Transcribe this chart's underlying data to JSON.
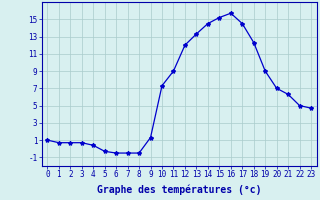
{
  "x": [
    0,
    1,
    2,
    3,
    4,
    5,
    6,
    7,
    8,
    9,
    10,
    11,
    12,
    13,
    14,
    15,
    16,
    17,
    18,
    19,
    20,
    21,
    22,
    23
  ],
  "y": [
    1,
    0.7,
    0.7,
    0.7,
    0.4,
    -0.3,
    -0.5,
    -0.5,
    -0.5,
    1.3,
    7.3,
    9.0,
    12.0,
    13.3,
    14.5,
    15.2,
    15.7,
    14.5,
    12.3,
    9.0,
    7.0,
    6.3,
    5.0,
    4.7
  ],
  "line_color": "#0000cc",
  "marker": "*",
  "marker_size": 3,
  "background_color": "#d8f0f0",
  "grid_color": "#aacccc",
  "xlabel": "Graphe des températures (°c)",
  "xlabel_fontsize": 7,
  "ylabel_ticks": [
    -1,
    1,
    3,
    5,
    7,
    9,
    11,
    13,
    15
  ],
  "xtick_labels": [
    "0",
    "1",
    "2",
    "3",
    "4",
    "5",
    "6",
    "7",
    "8",
    "9",
    "10",
    "11",
    "12",
    "13",
    "14",
    "15",
    "16",
    "17",
    "18",
    "19",
    "20",
    "21",
    "22",
    "23"
  ],
  "ylim": [
    -2,
    17
  ],
  "xlim": [
    -0.5,
    23.5
  ],
  "tick_color": "#0000aa",
  "tick_fontsize": 5.5,
  "spine_color": "#0000aa"
}
